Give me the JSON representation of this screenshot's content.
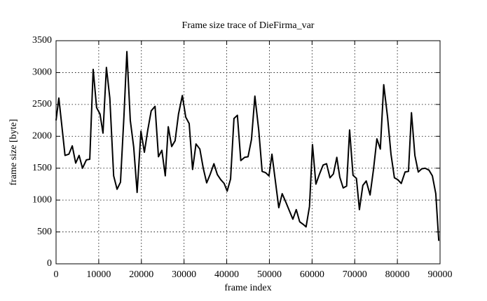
{
  "chart_data": {
    "type": "line",
    "title": "Frame size trace of DieFirma_var",
    "x_label": "frame index",
    "y_label": "frame size [byte]",
    "x": [
      0,
      650,
      1300,
      2100,
      3000,
      3800,
      4600,
      5400,
      6200,
      7100,
      7900,
      8700,
      9500,
      10300,
      11000,
      11800,
      12600,
      13500,
      14300,
      15100,
      15900,
      16600,
      17400,
      18200,
      19000,
      19900,
      20700,
      21500,
      22300,
      23200,
      24000,
      24800,
      25600,
      26300,
      27100,
      27900,
      28700,
      29600,
      30400,
      31200,
      32000,
      32800,
      33700,
      34500,
      35300,
      36100,
      37000,
      37800,
      38600,
      39400,
      40100,
      40900,
      41700,
      42500,
      43300,
      44200,
      45000,
      45800,
      46600,
      47500,
      48300,
      49100,
      49900,
      50600,
      51400,
      52200,
      53000,
      53900,
      54700,
      55500,
      56300,
      57100,
      57900,
      58600,
      59400,
      60100,
      60900,
      61700,
      62600,
      63400,
      64200,
      65000,
      65800,
      66500,
      67300,
      68100,
      68800,
      69600,
      70400,
      71100,
      71900,
      72700,
      73600,
      74400,
      75200,
      76000,
      76800,
      77700,
      78500,
      79300,
      80100,
      80900,
      81800,
      82600,
      83300,
      84100,
      84900,
      85700,
      86500,
      87400,
      88200,
      89000,
      89700
    ],
    "series": [
      {
        "name": "DieFirma_var",
        "color": "#000000",
        "values": [
          2250,
          2600,
          2200,
          1700,
          1720,
          1850,
          1580,
          1700,
          1500,
          1630,
          1640,
          3050,
          2450,
          2350,
          2050,
          3080,
          2600,
          1380,
          1170,
          1280,
          2300,
          3330,
          2250,
          1830,
          1120,
          2080,
          1750,
          2100,
          2400,
          2470,
          1680,
          1780,
          1380,
          2150,
          1840,
          1930,
          2350,
          2640,
          2300,
          2200,
          1480,
          1880,
          1800,
          1500,
          1270,
          1400,
          1570,
          1400,
          1320,
          1260,
          1140,
          1330,
          2280,
          2330,
          1620,
          1670,
          1680,
          1950,
          2630,
          2100,
          1450,
          1430,
          1380,
          1720,
          1300,
          880,
          1100,
          960,
          830,
          700,
          850,
          660,
          620,
          580,
          900,
          1870,
          1250,
          1400,
          1550,
          1570,
          1350,
          1410,
          1670,
          1360,
          1190,
          1220,
          2100,
          1390,
          1340,
          850,
          1230,
          1300,
          1080,
          1480,
          1960,
          1800,
          2810,
          2300,
          1720,
          1350,
          1320,
          1260,
          1440,
          1450,
          2370,
          1700,
          1440,
          1490,
          1500,
          1470,
          1380,
          1100,
          360
        ]
      }
    ],
    "xlim": [
      0,
      90000
    ],
    "xticks": [
      0,
      10000,
      20000,
      30000,
      40000,
      50000,
      60000,
      70000,
      80000,
      90000
    ],
    "ylim": [
      0,
      3500
    ],
    "yticks": [
      0,
      500,
      1000,
      1500,
      2000,
      2500,
      3000,
      3500
    ],
    "grid": true
  }
}
